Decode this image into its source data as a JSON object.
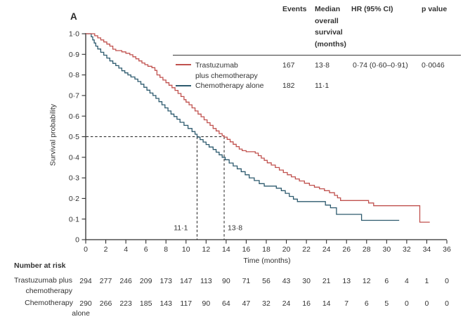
{
  "panel_label": "A",
  "colors": {
    "treatment": "#c0514e",
    "control": "#2d5a6e",
    "text": "#333333",
    "axis": "#2e2e2e"
  },
  "stats_table": {
    "col_headers": {
      "events": "Events",
      "median": "Median\noverall\nsurvival\n(months)",
      "hr": "HR (95% CI)",
      "p": "p value"
    },
    "rows": [
      {
        "name": "Trastuzumab\nplus chemotherapy",
        "events": "167",
        "median": "13·8",
        "hr": "0·74 (0·60–0·91)",
        "p": "0·0046"
      },
      {
        "name": "Chemotherapy alone",
        "events": "182",
        "median": "11·1",
        "hr": "",
        "p": ""
      }
    ]
  },
  "chart_data": {
    "type": "line",
    "subtype": "kaplan-meier-step",
    "title": "A",
    "xlabel": "Time (months)",
    "ylabel": "Survival probability",
    "xlim": [
      0,
      36
    ],
    "ylim": [
      0,
      1
    ],
    "xticks": [
      0,
      2,
      4,
      6,
      8,
      10,
      12,
      14,
      16,
      18,
      20,
      22,
      24,
      26,
      28,
      30,
      32,
      34,
      36
    ],
    "xtick_labels": [
      "0",
      "2",
      "4",
      "6",
      "8",
      "10",
      "12",
      "14",
      "16",
      "18",
      "20",
      "22",
      "24",
      "26",
      "28",
      "30",
      "32",
      "34",
      "36"
    ],
    "ytick_values": [
      0,
      0.1,
      0.2,
      0.3,
      0.4,
      0.5,
      0.6,
      0.7,
      0.8,
      0.9,
      1.0
    ],
    "ytick_labels": [
      "0",
      "0·1",
      "0·2",
      "0·3",
      "0·4",
      "0·5",
      "0·6",
      "0·7",
      "0·8",
      "0·9",
      "1·0"
    ],
    "grid": false,
    "legend_position": "top-right-inset",
    "median_survival_guides": {
      "y": 0.5,
      "x_values": [
        11.1,
        13.8
      ],
      "x_labels": [
        "11·1",
        "13·8"
      ]
    },
    "series": [
      {
        "name": "Trastuzumab plus chemotherapy",
        "color_key": "treatment",
        "events": 167,
        "median_months": 13.8,
        "points": [
          [
            0,
            1.0
          ],
          [
            0.9,
            0.99
          ],
          [
            1.2,
            0.98
          ],
          [
            1.5,
            0.97
          ],
          [
            1.8,
            0.96
          ],
          [
            2.1,
            0.95
          ],
          [
            2.4,
            0.94
          ],
          [
            2.7,
            0.925
          ],
          [
            3.0,
            0.918
          ],
          [
            3.6,
            0.912
          ],
          [
            4.0,
            0.905
          ],
          [
            4.4,
            0.898
          ],
          [
            4.7,
            0.888
          ],
          [
            5.0,
            0.878
          ],
          [
            5.3,
            0.868
          ],
          [
            5.6,
            0.858
          ],
          [
            5.9,
            0.85
          ],
          [
            6.2,
            0.842
          ],
          [
            6.6,
            0.835
          ],
          [
            6.9,
            0.822
          ],
          [
            7.1,
            0.8
          ],
          [
            7.4,
            0.788
          ],
          [
            7.7,
            0.775
          ],
          [
            8.0,
            0.762
          ],
          [
            8.3,
            0.75
          ],
          [
            8.6,
            0.738
          ],
          [
            8.9,
            0.725
          ],
          [
            9.2,
            0.71
          ],
          [
            9.5,
            0.695
          ],
          [
            9.8,
            0.68
          ],
          [
            10.0,
            0.668
          ],
          [
            10.3,
            0.655
          ],
          [
            10.6,
            0.64
          ],
          [
            10.9,
            0.625
          ],
          [
            11.2,
            0.61
          ],
          [
            11.5,
            0.597
          ],
          [
            11.8,
            0.582
          ],
          [
            12.1,
            0.568
          ],
          [
            12.4,
            0.555
          ],
          [
            12.7,
            0.54
          ],
          [
            13.0,
            0.528
          ],
          [
            13.3,
            0.515
          ],
          [
            13.6,
            0.505
          ],
          [
            13.8,
            0.498
          ],
          [
            14.1,
            0.487
          ],
          [
            14.4,
            0.475
          ],
          [
            14.7,
            0.463
          ],
          [
            15.0,
            0.452
          ],
          [
            15.3,
            0.44
          ],
          [
            15.6,
            0.432
          ],
          [
            16.0,
            0.427
          ],
          [
            16.9,
            0.42
          ],
          [
            17.2,
            0.408
          ],
          [
            17.5,
            0.396
          ],
          [
            17.8,
            0.385
          ],
          [
            18.1,
            0.373
          ],
          [
            18.5,
            0.362
          ],
          [
            18.9,
            0.35
          ],
          [
            19.3,
            0.338
          ],
          [
            19.7,
            0.326
          ],
          [
            20.1,
            0.315
          ],
          [
            20.5,
            0.305
          ],
          [
            20.9,
            0.295
          ],
          [
            21.3,
            0.285
          ],
          [
            21.8,
            0.274
          ],
          [
            22.3,
            0.264
          ],
          [
            22.8,
            0.255
          ],
          [
            23.3,
            0.247
          ],
          [
            23.8,
            0.238
          ],
          [
            24.3,
            0.228
          ],
          [
            24.8,
            0.215
          ],
          [
            25.1,
            0.203
          ],
          [
            25.4,
            0.19
          ],
          [
            28.2,
            0.178
          ],
          [
            28.7,
            0.165
          ],
          [
            33.3,
            0.085
          ],
          [
            34.3,
            0.085
          ]
        ]
      },
      {
        "name": "Chemotherapy alone",
        "color_key": "control",
        "events": 182,
        "median_months": 11.1,
        "points": [
          [
            0,
            1.0
          ],
          [
            0.55,
            0.985
          ],
          [
            0.7,
            0.97
          ],
          [
            0.85,
            0.955
          ],
          [
            1.0,
            0.94
          ],
          [
            1.2,
            0.926
          ],
          [
            1.5,
            0.91
          ],
          [
            1.8,
            0.896
          ],
          [
            2.1,
            0.882
          ],
          [
            2.4,
            0.868
          ],
          [
            2.7,
            0.856
          ],
          [
            3.0,
            0.845
          ],
          [
            3.3,
            0.833
          ],
          [
            3.6,
            0.82
          ],
          [
            3.9,
            0.81
          ],
          [
            4.2,
            0.8
          ],
          [
            4.5,
            0.79
          ],
          [
            4.9,
            0.78
          ],
          [
            5.2,
            0.768
          ],
          [
            5.5,
            0.755
          ],
          [
            5.8,
            0.74
          ],
          [
            6.1,
            0.726
          ],
          [
            6.4,
            0.712
          ],
          [
            6.7,
            0.7
          ],
          [
            7.0,
            0.686
          ],
          [
            7.3,
            0.67
          ],
          [
            7.6,
            0.655
          ],
          [
            7.9,
            0.64
          ],
          [
            8.2,
            0.625
          ],
          [
            8.5,
            0.61
          ],
          [
            8.8,
            0.598
          ],
          [
            9.1,
            0.585
          ],
          [
            9.4,
            0.57
          ],
          [
            9.8,
            0.555
          ],
          [
            10.2,
            0.54
          ],
          [
            10.6,
            0.525
          ],
          [
            10.9,
            0.512
          ],
          [
            11.1,
            0.498
          ],
          [
            11.4,
            0.486
          ],
          [
            11.7,
            0.474
          ],
          [
            12.0,
            0.462
          ],
          [
            12.3,
            0.45
          ],
          [
            12.7,
            0.438
          ],
          [
            13.0,
            0.425
          ],
          [
            13.3,
            0.412
          ],
          [
            13.6,
            0.4
          ],
          [
            13.9,
            0.388
          ],
          [
            14.3,
            0.372
          ],
          [
            14.7,
            0.358
          ],
          [
            15.1,
            0.344
          ],
          [
            15.5,
            0.33
          ],
          [
            15.9,
            0.315
          ],
          [
            16.3,
            0.3
          ],
          [
            16.8,
            0.287
          ],
          [
            17.3,
            0.272
          ],
          [
            17.8,
            0.26
          ],
          [
            19.0,
            0.25
          ],
          [
            19.5,
            0.238
          ],
          [
            19.9,
            0.225
          ],
          [
            20.3,
            0.21
          ],
          [
            20.7,
            0.197
          ],
          [
            21.1,
            0.185
          ],
          [
            23.9,
            0.168
          ],
          [
            24.4,
            0.155
          ],
          [
            25.0,
            0.123
          ],
          [
            27.5,
            0.094
          ],
          [
            31.25,
            0.094
          ]
        ]
      }
    ],
    "number_at_risk": {
      "title": "Number at risk",
      "times": [
        0,
        2,
        4,
        6,
        8,
        10,
        12,
        14,
        16,
        18,
        20,
        22,
        24,
        26,
        28,
        30,
        32,
        34,
        36
      ],
      "rows": [
        {
          "label_lines": [
            "Trastuzumab plus",
            "chemotherapy"
          ],
          "counts": [
            294,
            277,
            246,
            209,
            173,
            147,
            113,
            90,
            71,
            56,
            43,
            30,
            21,
            13,
            12,
            6,
            4,
            1,
            0
          ]
        },
        {
          "label_lines": [
            "Chemotherapy",
            "alone"
          ],
          "counts": [
            290,
            266,
            223,
            185,
            143,
            117,
            90,
            64,
            47,
            32,
            24,
            16,
            14,
            7,
            6,
            5,
            0,
            0,
            0
          ]
        }
      ]
    }
  }
}
